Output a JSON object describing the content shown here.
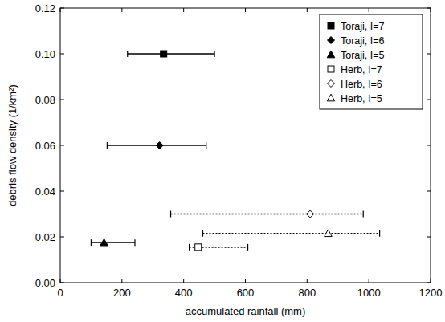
{
  "chart_data": {
    "type": "scatter",
    "x_label": "accumulated rainfall (mm)",
    "y_label": "debris flow density (1/km²)",
    "xlim": [
      0,
      1200
    ],
    "ylim": [
      0,
      0.12
    ],
    "xticks": [
      0,
      200,
      400,
      600,
      800,
      1000,
      1200
    ],
    "yticks": [
      {
        "value": 0,
        "label": "0.00"
      },
      0.02,
      0.04,
      0.06,
      0.08,
      {
        "value": 0.1,
        "label": "0.10"
      },
      0.12
    ],
    "grid": false,
    "legend": "upper right",
    "series": [
      {
        "name": "Toraji, I=7",
        "color": "#000000",
        "marker": "square",
        "line_style": "solid",
        "x": [
          335
        ],
        "values": [
          0.1
        ],
        "x_low": [
          218
        ],
        "x_high": [
          500
        ]
      },
      {
        "name": "Toraji, I=6",
        "color": "#000000",
        "marker": "diamond",
        "line_style": "solid",
        "x": [
          322
        ],
        "values": [
          0.06
        ],
        "x_low": [
          152
        ],
        "x_high": [
          473
        ]
      },
      {
        "name": "Toraji, I=5",
        "color": "#000000",
        "marker": "triangle",
        "line_style": "solid",
        "x": [
          142
        ],
        "values": [
          0.0175
        ],
        "x_low": [
          100
        ],
        "x_high": [
          242
        ]
      },
      {
        "name": "Herb, I=7",
        "color": "#000000",
        "marker": "square-open",
        "line_style": "dotted",
        "x": [
          447
        ],
        "values": [
          0.0155
        ],
        "x_low": [
          418
        ],
        "x_high": [
          608
        ]
      },
      {
        "name": "Herb, I=6",
        "color": "#000000",
        "marker": "diamond-open",
        "line_style": "dotted",
        "x": [
          810
        ],
        "values": [
          0.03
        ],
        "x_low": [
          358
        ],
        "x_high": [
          982
        ]
      },
      {
        "name": "Herb, I=5",
        "color": "#000000",
        "marker": "triangle-open",
        "line_style": "dotted",
        "x": [
          868
        ],
        "values": [
          0.0215
        ],
        "x_low": [
          462
        ],
        "x_high": [
          1035
        ]
      }
    ]
  }
}
